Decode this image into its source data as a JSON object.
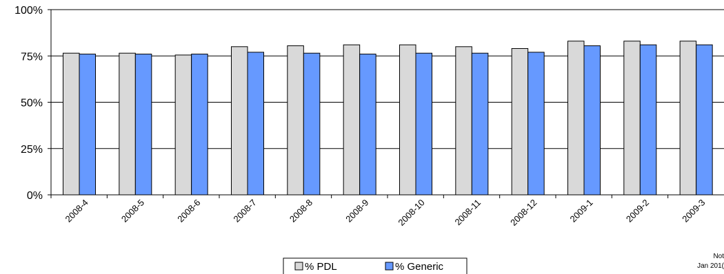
{
  "chart_data": {
    "type": "bar",
    "categories": [
      "2008-4",
      "2008-5",
      "2008-6",
      "2008-7",
      "2008-8",
      "2008-9",
      "2008-10",
      "2008-11",
      "2008-12",
      "2009-1",
      "2009-2",
      "2009-3"
    ],
    "series": [
      {
        "name": "% PDL",
        "color": "#d9d9d9",
        "values": [
          76.5,
          76.5,
          75.5,
          80,
          80.5,
          81,
          81,
          80,
          79,
          83,
          83,
          83
        ]
      },
      {
        "name": "% Generic",
        "color": "#6699ff",
        "values": [
          76,
          76,
          76,
          77,
          76.5,
          76,
          76.5,
          76.5,
          77,
          80.5,
          81,
          81
        ]
      }
    ],
    "yticks": [
      "0%",
      "25%",
      "50%",
      "75%",
      "100%"
    ],
    "ylim": [
      0,
      100
    ],
    "grid": true,
    "legend": "bottom-center"
  },
  "note": {
    "line1": "Not",
    "line2": "Jan 201("
  }
}
